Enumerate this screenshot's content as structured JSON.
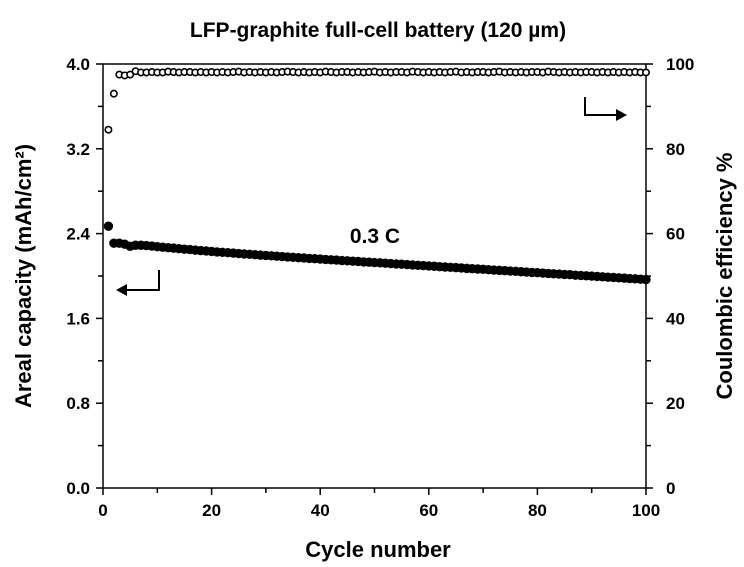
{
  "chart_data": {
    "type": "scatter",
    "title": "LFP-graphite full-cell battery (120 µm)",
    "xlabel": "Cycle number",
    "ylabel_left": "Areal capacity (mAh/cm²)",
    "ylabel_right": "Coulombic efficiency %",
    "annotation": "0.3 C",
    "xlim": [
      0,
      100
    ],
    "ylim_left": [
      0,
      4.0
    ],
    "ylim_right": [
      0,
      100
    ],
    "x_ticks": [
      "0",
      "20",
      "40",
      "60",
      "80",
      "100"
    ],
    "y_left_ticks": [
      "0.0",
      "0.8",
      "1.6",
      "2.4",
      "3.2",
      "4.0"
    ],
    "y_right_ticks": [
      "0",
      "20",
      "40",
      "60",
      "80",
      "100"
    ],
    "grid": false,
    "series": [
      {
        "axis": "left",
        "marker": "filled-circle",
        "x": [
          1,
          2,
          3,
          4,
          5,
          6,
          7,
          8,
          9,
          10,
          11,
          12,
          13,
          14,
          15,
          16,
          17,
          18,
          19,
          20,
          21,
          22,
          23,
          24,
          25,
          26,
          27,
          28,
          29,
          30,
          31,
          32,
          33,
          34,
          35,
          36,
          37,
          38,
          39,
          40,
          41,
          42,
          43,
          44,
          45,
          46,
          47,
          48,
          49,
          50,
          51,
          52,
          53,
          54,
          55,
          56,
          57,
          58,
          59,
          60,
          61,
          62,
          63,
          64,
          65,
          66,
          67,
          68,
          69,
          70,
          71,
          72,
          73,
          74,
          75,
          76,
          77,
          78,
          79,
          80,
          81,
          82,
          83,
          84,
          85,
          86,
          87,
          88,
          89,
          90,
          91,
          92,
          93,
          94,
          95,
          96,
          97,
          98,
          99,
          100
        ],
        "values": [
          2.47,
          2.31,
          2.31,
          2.3,
          2.28,
          2.29,
          2.29,
          2.287,
          2.282,
          2.277,
          2.272,
          2.267,
          2.263,
          2.258,
          2.253,
          2.249,
          2.244,
          2.24,
          2.236,
          2.232,
          2.227,
          2.223,
          2.22,
          2.216,
          2.212,
          2.208,
          2.205,
          2.201,
          2.197,
          2.194,
          2.19,
          2.187,
          2.183,
          2.18,
          2.176,
          2.173,
          2.17,
          2.166,
          2.163,
          2.16,
          2.156,
          2.153,
          2.15,
          2.146,
          2.143,
          2.14,
          2.137,
          2.133,
          2.13,
          2.127,
          2.124,
          2.121,
          2.117,
          2.114,
          2.111,
          2.108,
          2.104,
          2.101,
          2.098,
          2.095,
          2.092,
          2.088,
          2.085,
          2.082,
          2.079,
          2.076,
          2.072,
          2.069,
          2.066,
          2.063,
          2.06,
          2.056,
          2.053,
          2.05,
          2.047,
          2.044,
          2.04,
          2.037,
          2.034,
          2.031,
          2.028,
          2.024,
          2.021,
          2.018,
          2.015,
          2.012,
          2.008,
          2.005,
          2.002,
          1.999,
          1.996,
          1.992,
          1.989,
          1.986,
          1.983,
          1.98,
          1.976,
          1.973,
          1.97,
          1.967
        ]
      },
      {
        "axis": "right",
        "marker": "open-circle",
        "x": [
          1,
          2,
          3,
          4,
          5,
          6,
          7,
          8,
          9,
          10,
          11,
          12,
          13,
          14,
          15,
          16,
          17,
          18,
          19,
          20,
          21,
          22,
          23,
          24,
          25,
          26,
          27,
          28,
          29,
          30,
          31,
          32,
          33,
          34,
          35,
          36,
          37,
          38,
          39,
          40,
          41,
          42,
          43,
          44,
          45,
          46,
          47,
          48,
          49,
          50,
          51,
          52,
          53,
          54,
          55,
          56,
          57,
          58,
          59,
          60,
          61,
          62,
          63,
          64,
          65,
          66,
          67,
          68,
          69,
          70,
          71,
          72,
          73,
          74,
          75,
          76,
          77,
          78,
          79,
          80,
          81,
          82,
          83,
          84,
          85,
          86,
          87,
          88,
          89,
          90,
          91,
          92,
          93,
          94,
          95,
          96,
          97,
          98,
          99,
          100
        ],
        "values": [
          84.5,
          93.0,
          97.5,
          97.3,
          97.5,
          98.3,
          98.0,
          98.0,
          98.1,
          98.0,
          98.0,
          98.2,
          98.1,
          98.0,
          98.1,
          98.1,
          98.0,
          98.1,
          98.0,
          98.1,
          98.0,
          98.1,
          98.0,
          98.1,
          98.2,
          98.0,
          98.1,
          98.0,
          98.1,
          98.0,
          98.1,
          98.0,
          98.1,
          98.2,
          98.1,
          98.0,
          98.1,
          98.0,
          98.1,
          98.0,
          98.2,
          98.1,
          98.0,
          98.1,
          98.1,
          98.0,
          98.1,
          98.0,
          98.1,
          98.2,
          98.0,
          98.1,
          98.0,
          98.1,
          98.1,
          98.0,
          98.2,
          98.1,
          98.0,
          98.1,
          98.0,
          98.1,
          98.0,
          98.1,
          98.2,
          98.0,
          98.1,
          98.0,
          98.1,
          98.1,
          98.0,
          98.1,
          98.2,
          98.0,
          98.1,
          98.0,
          98.1,
          98.0,
          98.1,
          98.1,
          98.0,
          98.2,
          98.1,
          98.0,
          98.1,
          98.0,
          98.1,
          98.0,
          98.1,
          98.1,
          98.0,
          98.1,
          98.0,
          98.1,
          98.0,
          98.1,
          98.0,
          98.1,
          98.0,
          98.0
        ]
      }
    ]
  }
}
